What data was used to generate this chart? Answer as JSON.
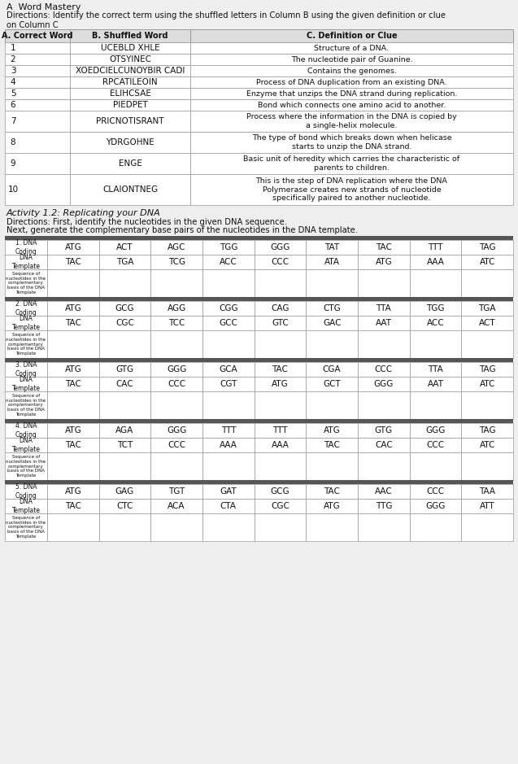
{
  "title_a": "A  Word Mastery",
  "directions_a": "Directions: Identify the correct term using the shuffled letters in Column B using the given definition or clue\non Column C",
  "col_headers": [
    "A. Correct Word",
    "B. Shuffled Word",
    "C. Definition or Clue"
  ],
  "rows": [
    [
      "1",
      "UCEBLD XHLE",
      "Structure of a DNA."
    ],
    [
      "2",
      "OTSYINEC",
      "The nucleotide pair of Guanine."
    ],
    [
      "3",
      "XOEDCIELCUNOYBIR CADI",
      "Contains the genomes."
    ],
    [
      "4",
      "RPCATILEOIN",
      "Process of DNA duplication from an existing DNA."
    ],
    [
      "5",
      "ELIHCSAE",
      "Enzyme that unzips the DNA strand during replication."
    ],
    [
      "6",
      "PIEDPET",
      "Bond which connects one amino acid to another."
    ],
    [
      "7",
      "PRICNOTISRANT",
      "Process where the information in the DNA is copied by\na single-helix molecule."
    ],
    [
      "8",
      "YDRGOHNE",
      "The type of bond which breaks down when helicase\nstarts to unzip the DNA strand."
    ],
    [
      "9",
      "ENGE",
      "Basic unit of heredity which carries the characteristic of\nparents to children."
    ],
    [
      "10",
      "CLAIONTNEG",
      "This is the step of DNA replication where the DNA\nPolymerase creates new strands of nucleotide\nspecifically paired to another nucleotide."
    ]
  ],
  "title_b": "Activity 1.2: Replicating your DNA",
  "directions_b1": "Directions: First, identify the nucleotides in the given DNA sequence.",
  "directions_b2": "Next, generate the complementary base pairs of the nucleotides in the DNA template.",
  "dna_sets": [
    {
      "label": "1. DNA\nCoding",
      "coding": [
        "ATG",
        "ACT",
        "AGC",
        "TGG",
        "GGG",
        "TAT",
        "TAC",
        "TTT",
        "TAG"
      ],
      "template_label": "DNA\nTemplate",
      "template": [
        "TAC",
        "TGA",
        "TCG",
        "ACC",
        "CCC",
        "ATA",
        "ATG",
        "AAA",
        "ATC"
      ],
      "seq_label": "Sequence of\nnucleotides in the\ncomplementary\nbasis of the DNA\nTemplate"
    },
    {
      "label": "2. DNA\nCoding",
      "coding": [
        "ATG",
        "GCG",
        "AGG",
        "CGG",
        "CAG",
        "CTG",
        "TTA",
        "TGG",
        "TGA"
      ],
      "template_label": "DNA\nTemplate",
      "template": [
        "TAC",
        "CGC",
        "TCC",
        "GCC",
        "GTC",
        "GAC",
        "AAT",
        "ACC",
        "ACT"
      ],
      "seq_label": "Sequence of\nnucleotides in the\ncomplementary\nbasis of the DNA\nTemplate"
    },
    {
      "label": "3. DNA\nCoding",
      "coding": [
        "ATG",
        "GTG",
        "GGG",
        "GCA",
        "TAC",
        "CGA",
        "CCC",
        "TTA",
        "TAG"
      ],
      "template_label": "DNA\nTemplate",
      "template": [
        "TAC",
        "CAC",
        "CCC",
        "CGT",
        "ATG",
        "GCT",
        "GGG",
        "AAT",
        "ATC"
      ],
      "seq_label": "Sequence of\nnucleotides in the\ncomplementary\nbasis of the DNA\nTemplate"
    },
    {
      "label": "4. DNA\nCoding",
      "coding": [
        "ATG",
        "AGA",
        "GGG",
        "TTT",
        "TTT",
        "ATG",
        "GTG",
        "GGG",
        "TAG"
      ],
      "template_label": "DNA\nTemplate",
      "template": [
        "TAC",
        "TCT",
        "CCC",
        "AAA",
        "AAA",
        "TAC",
        "CAC",
        "CCC",
        "ATC"
      ],
      "seq_label": "Sequence of\nnucleotides in the\ncomplementary\nbasis of the DNA\nTemplate"
    },
    {
      "label": "5. DNA\nCoding",
      "coding": [
        "ATG",
        "GAG",
        "TGT",
        "GAT",
        "GCG",
        "TAC",
        "AAC",
        "CCC",
        "TAA"
      ],
      "template_label": "DNA\nTemplate",
      "template": [
        "TAC",
        "CTC",
        "ACA",
        "CTA",
        "CGC",
        "ATG",
        "TTG",
        "GGG",
        "ATT"
      ],
      "seq_label": "Sequence of\nnucleotides in the\ncomplementary\nbasis of the DNA\nTemplate"
    }
  ],
  "bg_color": "#eeeeee",
  "header_bg": "#dddddd",
  "dark_separator": "#555555",
  "cell_bg": "#ffffff",
  "text_color": "#111111",
  "border_color": "#999999"
}
